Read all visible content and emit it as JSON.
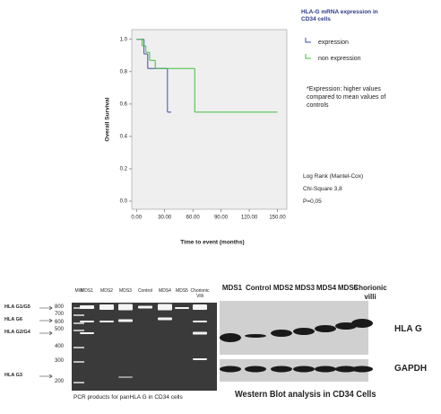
{
  "chart_data": {
    "type": "line",
    "step": true,
    "y_label": "Overall Survival",
    "x_label": "Time to event (months)",
    "legend_title": "HLA-G mRNA expression in CD34 cells",
    "annotations": [
      "*Expression: higher values compared to  mean values of controls",
      "Log Rank (Mantel-Cox)",
      "Chi-Square 3,8",
      "P=0,05"
    ],
    "xlim": [
      -5,
      160
    ],
    "ylim": [
      -0.05,
      1.06
    ],
    "xticks": [
      {
        "value": 0,
        "label": "0.00"
      },
      {
        "value": 30,
        "label": "30.00"
      },
      {
        "value": 60,
        "label": "60.00"
      },
      {
        "value": 90,
        "label": "90.00"
      },
      {
        "value": 120,
        "label": "120.00"
      },
      {
        "value": 150,
        "label": "150.00"
      }
    ],
    "yticks": [
      {
        "value": 0,
        "label": "0.0"
      },
      0.2,
      0.4,
      0.6,
      0.8,
      {
        "value": 1,
        "label": "1.0"
      }
    ],
    "series": [
      {
        "name": "expression",
        "color": "#3a4fa8",
        "x": [
          0,
          8,
          12,
          33,
          37
        ],
        "values": [
          1.0,
          0.91,
          0.82,
          0.55,
          0.55
        ]
      },
      {
        "name": "non expression",
        "color": "#3fbf3f",
        "x": [
          0,
          6,
          10,
          14,
          20,
          62,
          150
        ],
        "values": [
          1.0,
          0.96,
          0.92,
          0.87,
          0.82,
          0.55,
          0.55
        ]
      }
    ]
  },
  "gel": {
    "lanes": [
      "MW",
      "MDS1",
      "MDS2",
      "MDS3",
      "Control",
      "MDS4",
      "MDS5",
      "Chorionic Villi"
    ],
    "markers": [
      800,
      700,
      600,
      500,
      400,
      300,
      200
    ],
    "bands": [
      "HLA G1/G5",
      "HLA G6",
      "HLA G2/G4",
      "HLA G3"
    ],
    "caption": "PCR products for panHLA G in CD34 cells"
  },
  "western_blot": {
    "lanes": [
      "MDS1",
      "Control",
      "MDS2",
      "MDS3",
      "MDS4",
      "MDS5",
      "Chorionic villi"
    ],
    "rows": [
      "HLA G",
      "GAPDH"
    ],
    "caption": "Western Blot analysis in CD34 Cells"
  }
}
